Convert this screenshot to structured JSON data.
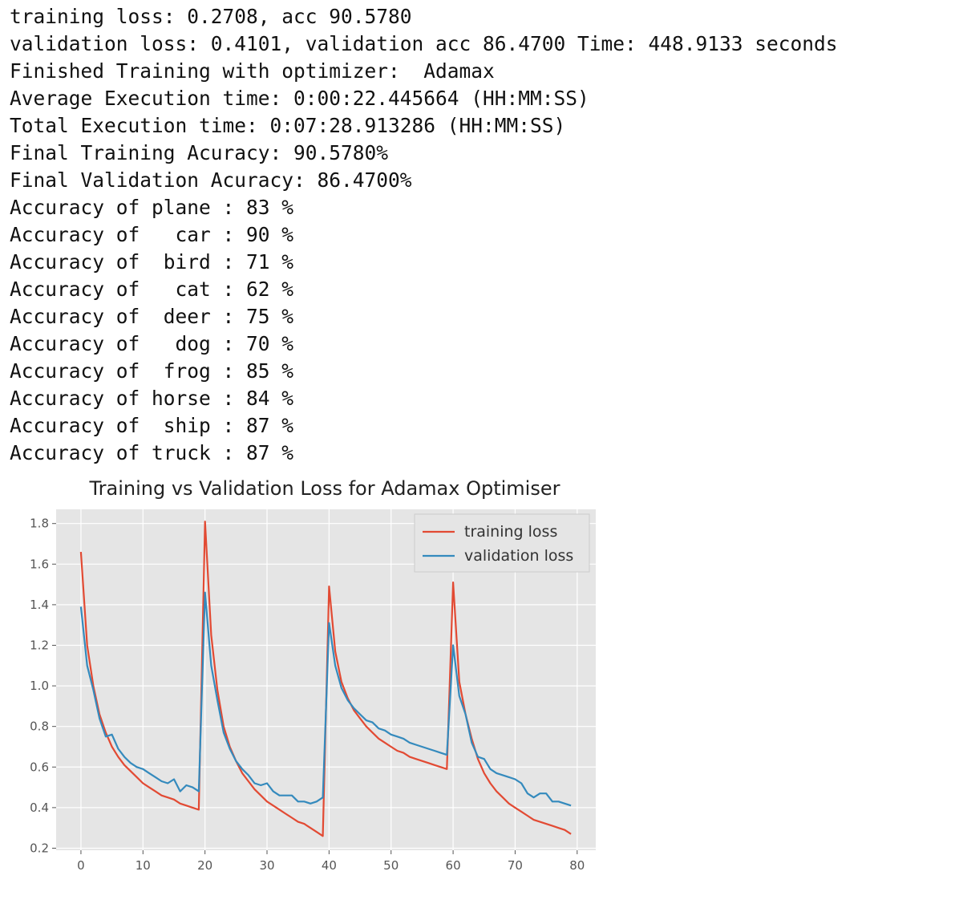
{
  "console_lines": [
    "training loss: 0.2708, acc 90.5780",
    "validation loss: 0.4101, validation acc 86.4700 Time: 448.9133 seconds",
    "Finished Training with optimizer:  Adamax",
    "Average Execution time: 0:00:22.445664 (HH:MM:SS)",
    "Total Execution time: 0:07:28.913286 (HH:MM:SS)",
    "Final Training Acuracy: 90.5780%",
    "Final Validation Acuracy: 86.4700%",
    "Accuracy of plane : 83 %",
    "Accuracy of   car : 90 %",
    "Accuracy of  bird : 71 %",
    "Accuracy of   cat : 62 %",
    "Accuracy of  deer : 75 %",
    "Accuracy of   dog : 70 %",
    "Accuracy of  frog : 85 %",
    "Accuracy of horse : 84 %",
    "Accuracy of  ship : 87 %",
    "Accuracy of truck : 87 %"
  ],
  "chart_data": {
    "type": "line",
    "title": "Training vs Validation Loss for Adamax Optimiser",
    "xlabel": "",
    "ylabel": "",
    "xlim": [
      -4,
      83
    ],
    "ylim": [
      0.19,
      1.87
    ],
    "xticks": [
      0,
      10,
      20,
      30,
      40,
      50,
      60,
      70,
      80
    ],
    "yticks": [
      0.2,
      0.4,
      0.6,
      0.8,
      1.0,
      1.2,
      1.4,
      1.6,
      1.8
    ],
    "ytick_labels": [
      "0.2",
      "0.4",
      "0.6",
      "0.8",
      "1.0",
      "1.2",
      "1.4",
      "1.6",
      "1.8"
    ],
    "grid": true,
    "legend_position": "top-right",
    "x": [
      0,
      1,
      2,
      3,
      4,
      5,
      6,
      7,
      8,
      9,
      10,
      11,
      12,
      13,
      14,
      15,
      16,
      17,
      18,
      19,
      20,
      21,
      22,
      23,
      24,
      25,
      26,
      27,
      28,
      29,
      30,
      31,
      32,
      33,
      34,
      35,
      36,
      37,
      38,
      39,
      40,
      41,
      42,
      43,
      44,
      45,
      46,
      47,
      48,
      49,
      50,
      51,
      52,
      53,
      54,
      55,
      56,
      57,
      58,
      59,
      60,
      61,
      62,
      63,
      64,
      65,
      66,
      67,
      68,
      69,
      70,
      71,
      72,
      73,
      74,
      75,
      76,
      77,
      78,
      79
    ],
    "series": [
      {
        "name": "training loss",
        "color": "#e24a33",
        "values": [
          1.66,
          1.2,
          1.0,
          0.86,
          0.77,
          0.7,
          0.65,
          0.61,
          0.58,
          0.55,
          0.52,
          0.5,
          0.48,
          0.46,
          0.45,
          0.44,
          0.42,
          0.41,
          0.4,
          0.39,
          1.81,
          1.25,
          0.98,
          0.8,
          0.7,
          0.63,
          0.57,
          0.53,
          0.49,
          0.46,
          0.43,
          0.41,
          0.39,
          0.37,
          0.35,
          0.33,
          0.32,
          0.3,
          0.28,
          0.26,
          1.49,
          1.17,
          1.02,
          0.94,
          0.88,
          0.84,
          0.8,
          0.77,
          0.74,
          0.72,
          0.7,
          0.68,
          0.67,
          0.65,
          0.64,
          0.63,
          0.62,
          0.61,
          0.6,
          0.59,
          1.51,
          1.02,
          0.86,
          0.74,
          0.64,
          0.57,
          0.52,
          0.48,
          0.45,
          0.42,
          0.4,
          0.38,
          0.36,
          0.34,
          0.33,
          0.32,
          0.31,
          0.3,
          0.29,
          0.27
        ]
      },
      {
        "name": "validation loss",
        "color": "#348abd",
        "values": [
          1.39,
          1.1,
          0.98,
          0.84,
          0.75,
          0.76,
          0.69,
          0.65,
          0.62,
          0.6,
          0.59,
          0.57,
          0.55,
          0.53,
          0.52,
          0.54,
          0.48,
          0.51,
          0.5,
          0.48,
          1.46,
          1.1,
          0.93,
          0.77,
          0.69,
          0.63,
          0.59,
          0.56,
          0.52,
          0.51,
          0.52,
          0.48,
          0.46,
          0.46,
          0.46,
          0.43,
          0.43,
          0.42,
          0.43,
          0.45,
          1.31,
          1.1,
          0.99,
          0.93,
          0.89,
          0.86,
          0.83,
          0.82,
          0.79,
          0.78,
          0.76,
          0.75,
          0.74,
          0.72,
          0.71,
          0.7,
          0.69,
          0.68,
          0.67,
          0.66,
          1.2,
          0.95,
          0.86,
          0.72,
          0.65,
          0.64,
          0.59,
          0.57,
          0.56,
          0.55,
          0.54,
          0.52,
          0.47,
          0.45,
          0.47,
          0.47,
          0.43,
          0.43,
          0.42,
          0.41
        ]
      }
    ]
  }
}
